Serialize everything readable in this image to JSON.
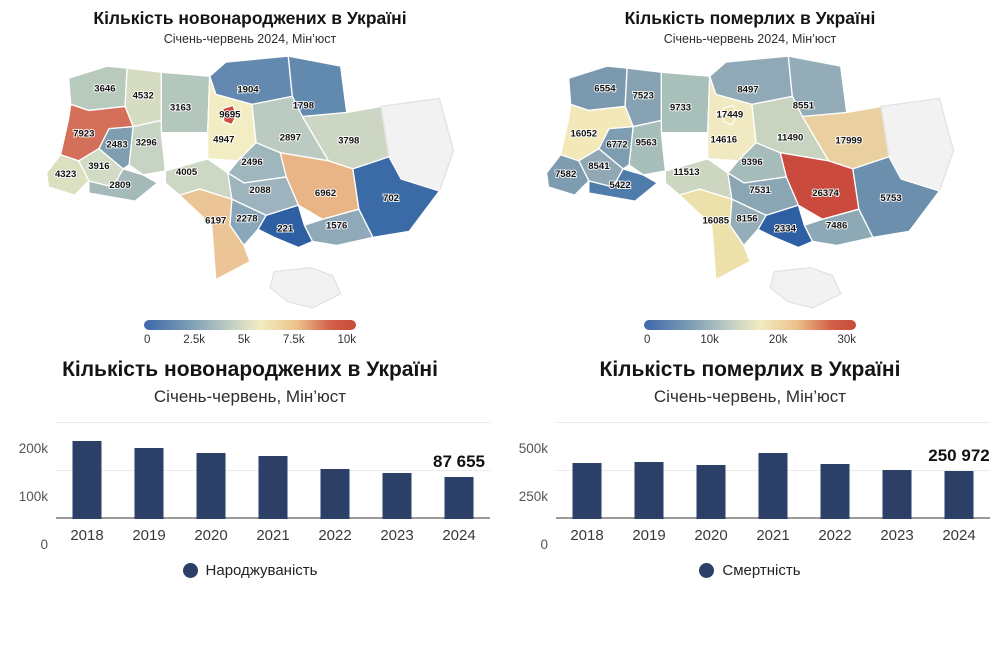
{
  "chart_data": [
    {
      "type": "heatmap",
      "subtype": "choropleth-map-ukraine",
      "title": "Кількість новонароджених в Україні",
      "subtitle": "Січень-червень 2024, Мін’юст",
      "colorbar": {
        "min": 0,
        "max": 10000,
        "ticks": [
          "0",
          "2.5k",
          "5k",
          "7.5k",
          "10k"
        ]
      },
      "regions": [
        {
          "id": "volyn",
          "value": 3646,
          "color": "#b8cabc"
        },
        {
          "id": "rivne",
          "value": 4532,
          "color": "#d6dcc2"
        },
        {
          "id": "zhytomyr",
          "value": 3163,
          "color": "#b4c7bd"
        },
        {
          "id": "chernihiv",
          "value": 1904,
          "color": "#6389b0"
        },
        {
          "id": "sumy",
          "value": 1798,
          "color": "#6289ae"
        },
        {
          "id": "kyiv_oblast",
          "value": 4947,
          "color": "#f3edc4"
        },
        {
          "id": "kyiv_city",
          "value": 9695,
          "color": "#cb4b42"
        },
        {
          "id": "poltava",
          "value": 2897,
          "color": "#bccbc2"
        },
        {
          "id": "kharkiv",
          "value": 3798,
          "color": "#ccd6c3"
        },
        {
          "id": "luhansk",
          "value": null,
          "color": "#f2f2f2"
        },
        {
          "id": "donetsk",
          "value": 702,
          "color": "#3a6ba6"
        },
        {
          "id": "dnipro",
          "value": 6962,
          "color": "#e9b586"
        },
        {
          "id": "zaporizhzhia",
          "value": 1576,
          "color": "#90a9b8"
        },
        {
          "id": "kherson",
          "value": 221,
          "color": "#2e5fa2"
        },
        {
          "id": "mykolaiv",
          "value": 2278,
          "color": "#8aa7ba"
        },
        {
          "id": "odesa",
          "value": 6197,
          "color": "#ecc596"
        },
        {
          "id": "vinnytsia",
          "value": 4005,
          "color": "#cdd8c4"
        },
        {
          "id": "cherkasy",
          "value": 2496,
          "color": "#9fb6bd"
        },
        {
          "id": "kirovohrad",
          "value": 2088,
          "color": "#9db4be"
        },
        {
          "id": "khmelnytskyi",
          "value": 3296,
          "color": "#c7d3c3"
        },
        {
          "id": "ternopil",
          "value": 2483,
          "color": "#7f9fb0"
        },
        {
          "id": "lviv",
          "value": 7923,
          "color": "#d4705a"
        },
        {
          "id": "ivano_frankivsk",
          "value": 3916,
          "color": "#d2dbc4"
        },
        {
          "id": "zakarpattia",
          "value": 4323,
          "color": "#dce0c0"
        },
        {
          "id": "chernivtsi",
          "value": 2809,
          "color": "#a3bab8"
        },
        {
          "id": "crimea",
          "value": null,
          "color": "#f2f2f2"
        }
      ]
    },
    {
      "type": "heatmap",
      "subtype": "choropleth-map-ukraine",
      "title": "Кількість померлих в Україні",
      "subtitle": "Січень-червень 2024, Мін’юст",
      "colorbar": {
        "min": 0,
        "max": 30000,
        "ticks": [
          "0",
          "10k",
          "20k",
          "30k"
        ]
      },
      "regions": [
        {
          "id": "volyn",
          "value": 6554,
          "color": "#7b99ae"
        },
        {
          "id": "rivne",
          "value": 7523,
          "color": "#87a2b2"
        },
        {
          "id": "zhytomyr",
          "value": 9733,
          "color": "#a9bfba"
        },
        {
          "id": "chernihiv",
          "value": 8497,
          "color": "#8fa9b6"
        },
        {
          "id": "sumy",
          "value": 8551,
          "color": "#93acb8"
        },
        {
          "id": "kyiv_oblast",
          "value": 14616,
          "color": "#f0e9c2"
        },
        {
          "id": "kyiv_city",
          "value": 17449,
          "color": "#f2e2ad"
        },
        {
          "id": "poltava",
          "value": 11490,
          "color": "#c8d3c0"
        },
        {
          "id": "kharkiv",
          "value": 17999,
          "color": "#ead0a0"
        },
        {
          "id": "luhansk",
          "value": null,
          "color": "#f2f2f2"
        },
        {
          "id": "donetsk",
          "value": 5753,
          "color": "#6b8fad"
        },
        {
          "id": "dnipro",
          "value": 26374,
          "color": "#ca4b3e"
        },
        {
          "id": "zaporizhzhia",
          "value": 7486,
          "color": "#8ea9b6"
        },
        {
          "id": "kherson",
          "value": 2334,
          "color": "#2e5fa2"
        },
        {
          "id": "mykolaiv",
          "value": 8156,
          "color": "#94adb6"
        },
        {
          "id": "odesa",
          "value": 16085,
          "color": "#ede1ab"
        },
        {
          "id": "vinnytsia",
          "value": 11513,
          "color": "#ccd6c0"
        },
        {
          "id": "cherkasy",
          "value": 9396,
          "color": "#a5bcba"
        },
        {
          "id": "kirovohrad",
          "value": 7531,
          "color": "#8aa5b4"
        },
        {
          "id": "khmelnytskyi",
          "value": 9563,
          "color": "#a7beba"
        },
        {
          "id": "ternopil",
          "value": 6772,
          "color": "#7f9db0"
        },
        {
          "id": "lviv",
          "value": 16052,
          "color": "#f2e8b8"
        },
        {
          "id": "ivano_frankivsk",
          "value": 8541,
          "color": "#8fa8b3"
        },
        {
          "id": "zakarpattia",
          "value": 7582,
          "color": "#7e9cb0"
        },
        {
          "id": "chernivtsi",
          "value": 5422,
          "color": "#4f7cab"
        },
        {
          "id": "crimea",
          "value": null,
          "color": "#f2f2f2"
        }
      ]
    },
    {
      "type": "bar",
      "title": "Кількість новонароджених в Україні",
      "subtitle": "Січень-червень, Мін’юст",
      "categories": [
        "2018",
        "2019",
        "2020",
        "2021",
        "2022",
        "2023",
        "2024"
      ],
      "values": [
        162000,
        148000,
        137000,
        131000,
        105000,
        96000,
        87655
      ],
      "ylim": [
        0,
        200000
      ],
      "y_ticks": [
        {
          "label": "200k",
          "value": 200000
        },
        {
          "label": "100k",
          "value": 100000
        },
        {
          "label": "0",
          "value": 0
        }
      ],
      "annotation": {
        "text": "87 655",
        "category": "2024"
      },
      "bar_color": "#2c3f66",
      "legend": {
        "label": "Народжуваність",
        "color": "#2c3f66"
      }
    },
    {
      "type": "bar",
      "title": "Кількість померлих в Україні",
      "subtitle": "Січень-червень, Мін’юст",
      "categories": [
        "2018",
        "2019",
        "2020",
        "2021",
        "2022",
        "2023",
        "2024"
      ],
      "values": [
        290000,
        298000,
        281000,
        346000,
        287000,
        255000,
        250972
      ],
      "ylim": [
        0,
        500000
      ],
      "y_ticks": [
        {
          "label": "500k",
          "value": 500000
        },
        {
          "label": "250k",
          "value": 250000
        },
        {
          "label": "0",
          "value": 0
        }
      ],
      "annotation": {
        "text": "250 972",
        "category": "2024"
      },
      "bar_color": "#2c3f66",
      "legend": {
        "label": "Смертність",
        "color": "#2c3f66"
      }
    }
  ]
}
